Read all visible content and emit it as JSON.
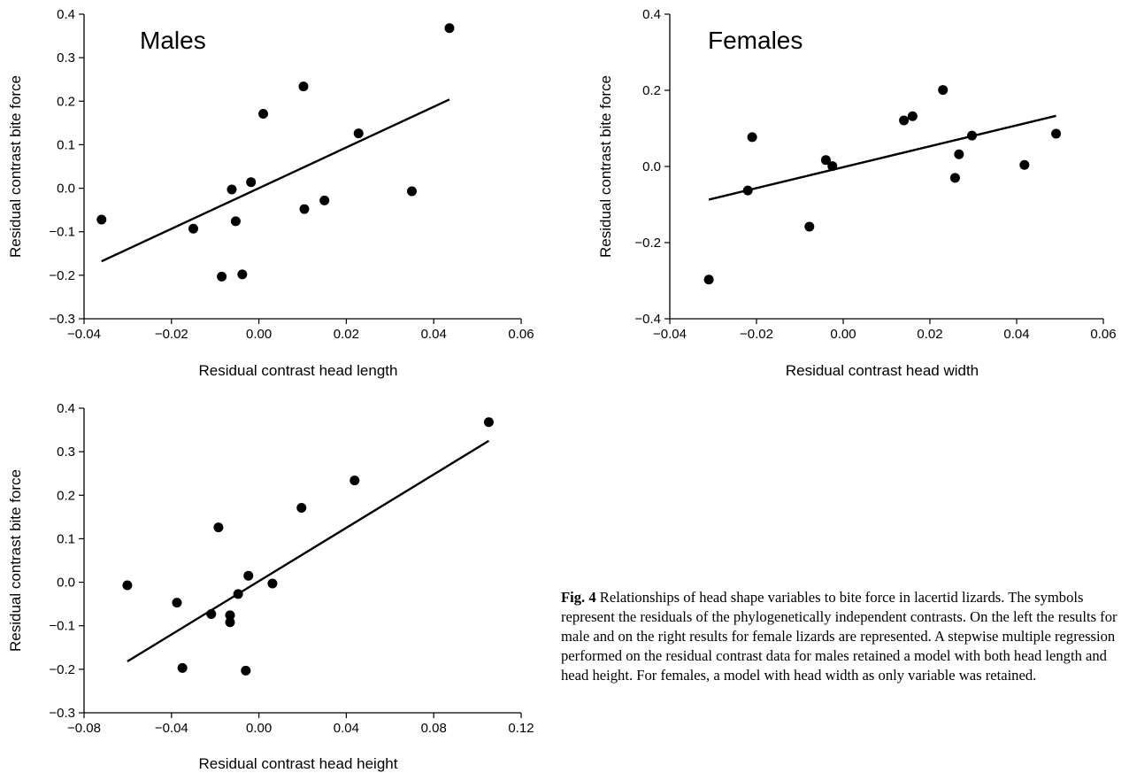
{
  "chart_data": [
    {
      "type": "scatter",
      "title": "Males",
      "xlabel": "Residual contrast head length",
      "ylabel": "Residual contrast bite force",
      "xlim": [
        -0.04,
        0.06
      ],
      "ylim": [
        -0.3,
        0.4
      ],
      "xticks": [
        "−0.04",
        "−0.02",
        "0.00",
        "0.02",
        "0.04",
        "0.06"
      ],
      "yticks": [
        "0.4",
        "0.3",
        "0.2",
        "0.1",
        "0.0",
        "−0.1",
        "−0.2",
        "−0.3"
      ],
      "points": [
        {
          "x": -0.036,
          "y": -0.072
        },
        {
          "x": -0.015,
          "y": -0.093
        },
        {
          "x": -0.0085,
          "y": -0.203
        },
        {
          "x": -0.0062,
          "y": -0.003
        },
        {
          "x": -0.0053,
          "y": -0.076
        },
        {
          "x": -0.0038,
          "y": -0.198
        },
        {
          "x": -0.0018,
          "y": 0.014
        },
        {
          "x": 0.001,
          "y": 0.171
        },
        {
          "x": 0.0102,
          "y": 0.234
        },
        {
          "x": 0.0104,
          "y": -0.048
        },
        {
          "x": 0.015,
          "y": -0.028
        },
        {
          "x": 0.0228,
          "y": 0.126
        },
        {
          "x": 0.035,
          "y": -0.007
        },
        {
          "x": 0.0436,
          "y": 0.368
        }
      ],
      "fit_line": [
        {
          "x": -0.036,
          "y": -0.168
        },
        {
          "x": 0.0436,
          "y": 0.204
        }
      ]
    },
    {
      "type": "scatter",
      "title": "Females",
      "xlabel": "Residual contrast head width",
      "ylabel": "Residual contrast bite force",
      "xlim": [
        -0.04,
        0.06
      ],
      "ylim": [
        -0.4,
        0.4
      ],
      "xticks": [
        "−0.04",
        "−0.02",
        "0.00",
        "0.02",
        "0.04",
        "0.06"
      ],
      "yticks": [
        "0.4",
        "0.2",
        "0.0",
        "−0.2",
        "−0.4"
      ],
      "points": [
        {
          "x": -0.031,
          "y": -0.297
        },
        {
          "x": -0.022,
          "y": -0.063
        },
        {
          "x": -0.021,
          "y": 0.077
        },
        {
          "x": -0.0078,
          "y": -0.158
        },
        {
          "x": -0.004,
          "y": 0.017
        },
        {
          "x": -0.0025,
          "y": 0.001
        },
        {
          "x": 0.014,
          "y": 0.121
        },
        {
          "x": 0.016,
          "y": 0.132
        },
        {
          "x": 0.023,
          "y": 0.201
        },
        {
          "x": 0.0258,
          "y": -0.03
        },
        {
          "x": 0.0267,
          "y": 0.032
        },
        {
          "x": 0.0297,
          "y": 0.081
        },
        {
          "x": 0.0418,
          "y": 0.004
        },
        {
          "x": 0.0491,
          "y": 0.086
        }
      ],
      "fit_line": [
        {
          "x": -0.031,
          "y": -0.087
        },
        {
          "x": 0.0491,
          "y": 0.133
        }
      ]
    },
    {
      "type": "scatter",
      "title": "",
      "xlabel": "Residual contrast head height",
      "ylabel": "Residual contrast bite force",
      "xlim": [
        -0.08,
        0.12
      ],
      "ylim": [
        -0.3,
        0.4
      ],
      "xticks": [
        "−0.08",
        "−0.04",
        "0.00",
        "0.04",
        "0.08",
        "0.12"
      ],
      "yticks": [
        "0.4",
        "0.3",
        "0.2",
        "0.1",
        "0.0",
        "−0.1",
        "−0.2",
        "−0.3"
      ],
      "points": [
        {
          "x": -0.0602,
          "y": -0.007
        },
        {
          "x": -0.0375,
          "y": -0.047
        },
        {
          "x": -0.035,
          "y": -0.197
        },
        {
          "x": -0.0218,
          "y": -0.073
        },
        {
          "x": -0.0185,
          "y": 0.126
        },
        {
          "x": -0.0132,
          "y": -0.076
        },
        {
          "x": -0.0132,
          "y": -0.092
        },
        {
          "x": -0.0095,
          "y": -0.027
        },
        {
          "x": -0.006,
          "y": -0.203
        },
        {
          "x": -0.0048,
          "y": 0.015
        },
        {
          "x": 0.0062,
          "y": -0.003
        },
        {
          "x": 0.0195,
          "y": 0.171
        },
        {
          "x": 0.0438,
          "y": 0.234
        },
        {
          "x": 0.1052,
          "y": 0.368
        }
      ],
      "fit_line": [
        {
          "x": -0.0602,
          "y": -0.182
        },
        {
          "x": 0.1052,
          "y": 0.325
        }
      ]
    }
  ],
  "caption": {
    "label": "Fig. 4",
    "text": "Relationships of head shape variables to bite force in lacertid lizards. The symbols represent the residuals of the phylogenetically independent contrasts. On the left the results for male and on the right results for female lizards are represented. A stepwise multiple regression performed on the residual contrast data for males retained a model with both head length and head height. For females, a model with head width as only variable was retained."
  }
}
